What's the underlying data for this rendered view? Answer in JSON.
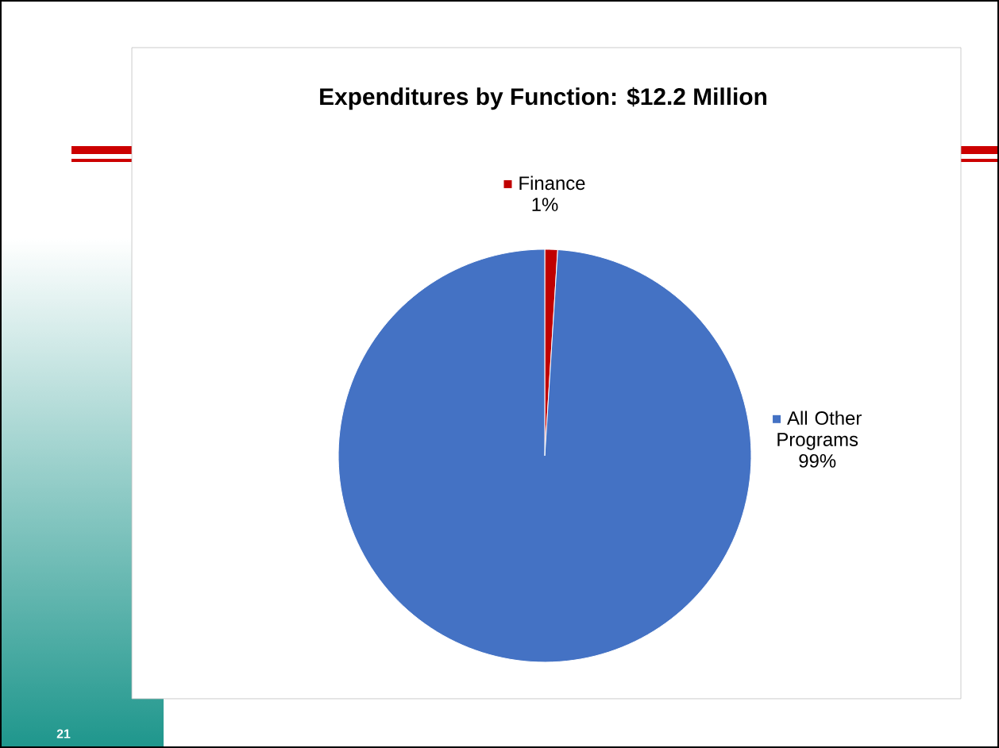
{
  "chart_data": {
    "type": "pie",
    "title": "Expenditures by Function: $12.2 Million",
    "categories": [
      "Finance",
      "All Other Programs"
    ],
    "values": [
      1,
      99
    ],
    "colors": [
      "#c00000",
      "#4472c4"
    ],
    "value_labels": [
      "1%",
      "99%"
    ],
    "annotations": [
      "21"
    ]
  }
}
